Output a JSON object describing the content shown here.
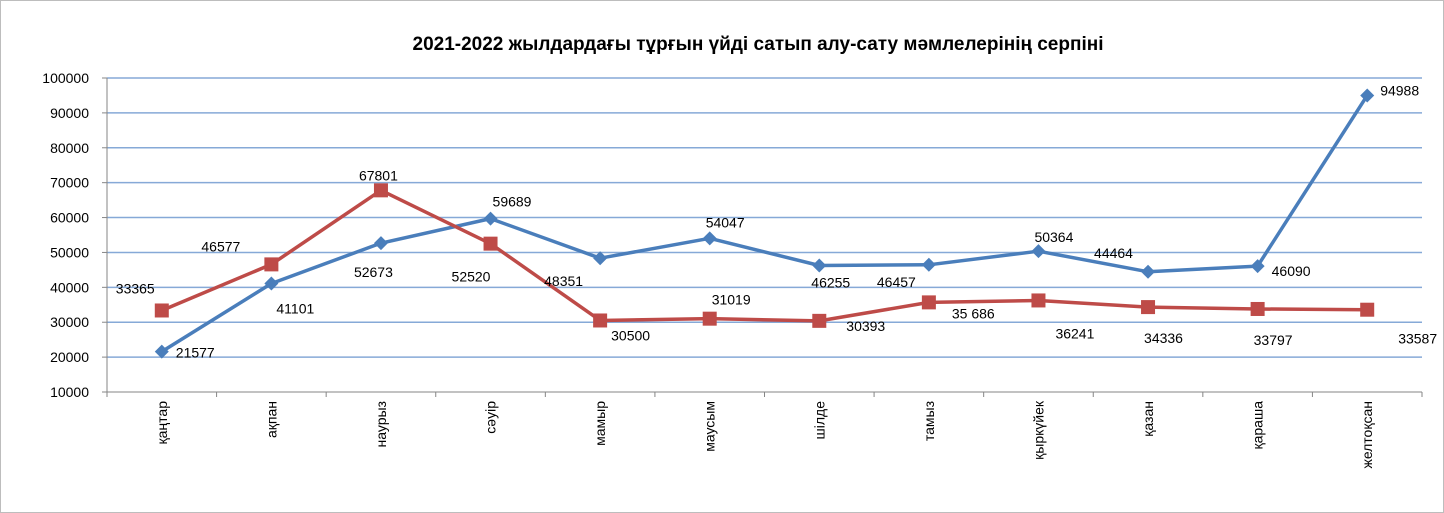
{
  "chart_data": {
    "type": "line",
    "title": "2021-2022 жылдардағы тұрғын үйді сатып алу-сату мәмлелерінің серпіні",
    "xlabel": "",
    "ylabel": "",
    "ylim": [
      10000,
      100000
    ],
    "ystep": 10000,
    "yticks": [
      "10000",
      "20000",
      "30000",
      "40000",
      "50000",
      "60000",
      "70000",
      "80000",
      "90000",
      "100000"
    ],
    "grid": true,
    "legend": "none",
    "categories": [
      "қаңтар",
      "ақпан",
      "наурыз",
      "сәуір",
      "мамыр",
      "маусым",
      "шілде",
      "тамыз",
      "қыркүйек",
      "қазан",
      "қараша",
      "желтоқсан"
    ],
    "series": [
      {
        "color": "#4a7ebb",
        "marker": "diamond",
        "values": [
          21577,
          41101,
          52673,
          59689,
          48351,
          54047,
          46255,
          46457,
          50364,
          44464,
          46090,
          94988
        ],
        "labels": [
          "21577",
          "41101",
          "52673",
          "59689",
          "48351",
          "54047",
          "46255",
          "46457",
          "50364",
          "44464",
          "46090",
          "94988"
        ]
      },
      {
        "color": "#be4b48",
        "marker": "square",
        "values": [
          33365,
          46577,
          67801,
          52520,
          30500,
          31019,
          30393,
          35686,
          36241,
          34336,
          33797,
          33587
        ],
        "labels": [
          "33365",
          "46577",
          "67801",
          "52520",
          "30500",
          "31019",
          "30393",
          "35 686",
          "36241",
          "34336",
          "33797",
          "33587"
        ]
      }
    ]
  }
}
